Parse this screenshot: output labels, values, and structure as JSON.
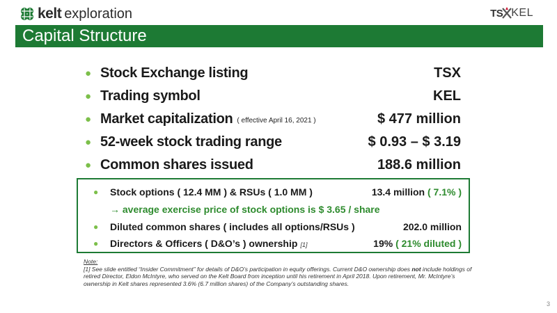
{
  "header": {
    "logo_brand": "kelt",
    "logo_sub": "exploration",
    "tsx_left": "TS",
    "tsx_right": "KEL"
  },
  "title": "Capital Structure",
  "main_items": [
    {
      "label": "Stock Exchange listing",
      "note": "",
      "value": "TSX"
    },
    {
      "label": "Trading symbol",
      "note": "",
      "value": "KEL"
    },
    {
      "label": "Market capitalization",
      "note": "( effective April 16, 2021 )",
      "value": "$ 477 million"
    },
    {
      "label": "52-week stock trading range",
      "note": "",
      "value": "$ 0.93 – $ 3.19"
    },
    {
      "label": "Common shares issued",
      "note": "",
      "value": "188.6 million"
    }
  ],
  "box": {
    "item1_label": "Stock options ( 12.4 MM ) & RSUs ( 1.0 MM )",
    "item1_value": "13.4 million",
    "item1_pct": "( 7.1% )",
    "arrow_text": "→ average exercise price of stock options is $ 3.65 / share",
    "item2_label": "Diluted common shares ( includes all options/RSUs )",
    "item2_value": "202.0 million",
    "item3_label": "Directors & Officers ( D&O’s ) ownership",
    "item3_note": "[1]",
    "item3_value": "19%",
    "item3_pct": "( 21% diluted )"
  },
  "note": {
    "heading": "Note:",
    "text_a": "[1] See slide entitled “Insider Commitment” for details of D&O’s participation in equity offerings. Current D&O ownership does ",
    "text_bold": "not",
    "text_b": " include holdings of retired Director, Eldon McIntyre, who served on the Kelt Board from inception until his retirement in April 2018. Upon retirement, Mr. McIntyre’s ownership in Kelt shares represented 3.6% (6.7 million shares) of the Company’s outstanding shares."
  },
  "page_number": "3",
  "colors": {
    "title_bar": "#1d7a34",
    "bullet": "#7cbf4a",
    "accent_text": "#2e8b2e"
  }
}
